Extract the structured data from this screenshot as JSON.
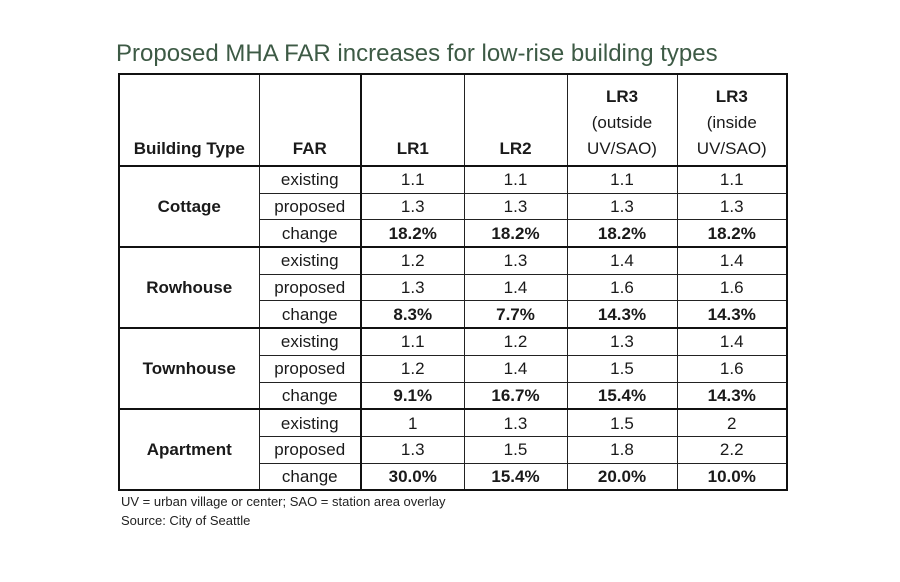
{
  "title": "Proposed MHA FAR increases for low-rise building types",
  "chart_data": {
    "type": "table",
    "title": "Proposed MHA FAR increases for low-rise building types",
    "columns": [
      {
        "label": "Building Type",
        "sub": ""
      },
      {
        "label": "FAR",
        "sub": ""
      },
      {
        "label": "LR1",
        "sub": ""
      },
      {
        "label": "LR2",
        "sub": ""
      },
      {
        "label": "LR3",
        "sub": "(outside UV/SAO)"
      },
      {
        "label": "LR3",
        "sub": "(inside UV/SAO)"
      }
    ],
    "groups": [
      {
        "name": "Cottage",
        "rows": [
          {
            "far": "existing",
            "values": [
              "1.1",
              "1.1",
              "1.1",
              "1.1"
            ]
          },
          {
            "far": "proposed",
            "values": [
              "1.3",
              "1.3",
              "1.3",
              "1.3"
            ]
          },
          {
            "far": "change",
            "values": [
              "18.2%",
              "18.2%",
              "18.2%",
              "18.2%"
            ]
          }
        ]
      },
      {
        "name": "Rowhouse",
        "rows": [
          {
            "far": "existing",
            "values": [
              "1.2",
              "1.3",
              "1.4",
              "1.4"
            ]
          },
          {
            "far": "proposed",
            "values": [
              "1.3",
              "1.4",
              "1.6",
              "1.6"
            ]
          },
          {
            "far": "change",
            "values": [
              "8.3%",
              "7.7%",
              "14.3%",
              "14.3%"
            ]
          }
        ]
      },
      {
        "name": "Townhouse",
        "rows": [
          {
            "far": "existing",
            "values": [
              "1.1",
              "1.2",
              "1.3",
              "1.4"
            ]
          },
          {
            "far": "proposed",
            "values": [
              "1.2",
              "1.4",
              "1.5",
              "1.6"
            ]
          },
          {
            "far": "change",
            "values": [
              "9.1%",
              "16.7%",
              "15.4%",
              "14.3%"
            ]
          }
        ]
      },
      {
        "name": "Apartment",
        "rows": [
          {
            "far": "existing",
            "values": [
              "1",
              "1.3",
              "1.5",
              "2"
            ]
          },
          {
            "far": "proposed",
            "values": [
              "1.3",
              "1.5",
              "1.8",
              "2.2"
            ]
          },
          {
            "far": "change",
            "values": [
              "30.0%",
              "15.4%",
              "20.0%",
              "10.0%"
            ]
          }
        ]
      }
    ]
  },
  "notes": {
    "footnote": "UV = urban village or center; SAO = station area overlay",
    "source": "Source: City of Seattle"
  },
  "colors": {
    "title": "#3d5a45",
    "border": "#111111"
  }
}
